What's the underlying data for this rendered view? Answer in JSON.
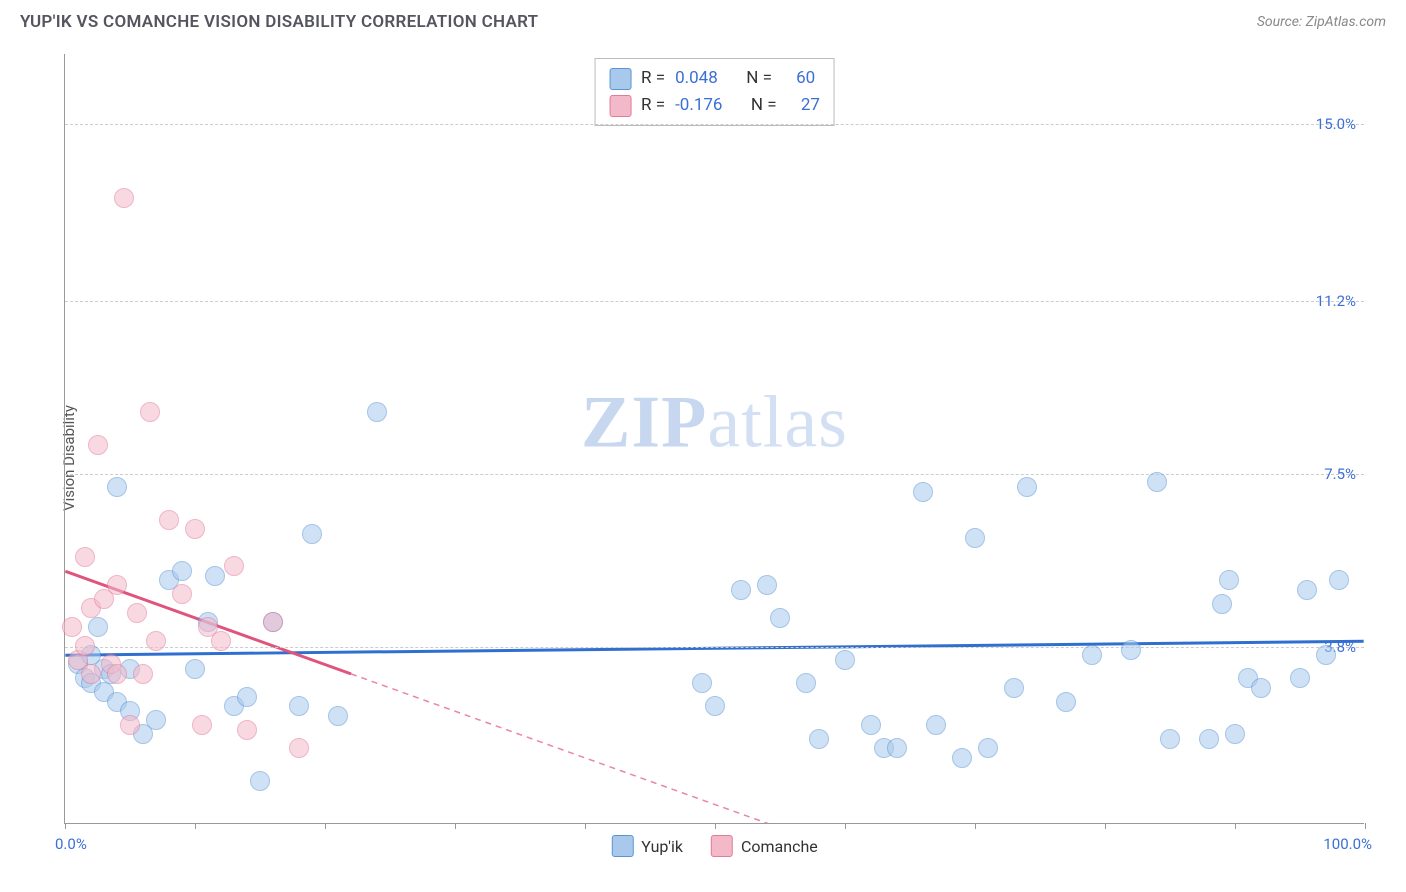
{
  "title": "YUP'IK VS COMANCHE VISION DISABILITY CORRELATION CHART",
  "source": "Source: ZipAtlas.com",
  "watermark_bold": "ZIP",
  "watermark_light": "atlas",
  "chart": {
    "type": "scatter",
    "ylabel": "Vision Disability",
    "xlim": [
      0,
      100
    ],
    "ylim": [
      0,
      16.5
    ],
    "x_ticks": [
      0,
      10,
      20,
      30,
      40,
      50,
      60,
      70,
      80,
      90,
      100
    ],
    "y_gridlines": [
      3.8,
      7.5,
      11.2,
      15.0
    ],
    "y_tick_labels": [
      "3.8%",
      "7.5%",
      "11.2%",
      "15.0%"
    ],
    "x_min_label": "0.0%",
    "x_max_label": "100.0%",
    "grid_color": "#cccccc",
    "axis_color": "#999999",
    "background_color": "#ffffff",
    "marker_radius": 10,
    "marker_opacity": 0.55,
    "series": [
      {
        "name": "Yup'ik",
        "fill": "#a9c9ec",
        "stroke": "#5b94d6",
        "trend_color": "#2f6fd0",
        "trend_width": 3,
        "R": "0.048",
        "N": "60",
        "trend": {
          "x0": 0,
          "y0": 3.6,
          "x1": 100,
          "y1": 3.9,
          "dash_from_x": null
        },
        "points": [
          [
            1,
            3.4
          ],
          [
            1.5,
            3.1
          ],
          [
            2,
            3.0
          ],
          [
            2,
            3.6
          ],
          [
            2.5,
            4.2
          ],
          [
            3,
            2.8
          ],
          [
            3,
            3.3
          ],
          [
            3.5,
            3.2
          ],
          [
            4,
            2.6
          ],
          [
            4,
            7.2
          ],
          [
            5,
            2.4
          ],
          [
            5,
            3.3
          ],
          [
            6,
            1.9
          ],
          [
            7,
            2.2
          ],
          [
            8,
            5.2
          ],
          [
            9,
            5.4
          ],
          [
            10,
            3.3
          ],
          [
            11,
            4.3
          ],
          [
            11.5,
            5.3
          ],
          [
            13,
            2.5
          ],
          [
            14,
            2.7
          ],
          [
            15,
            0.9
          ],
          [
            16,
            4.3
          ],
          [
            18,
            2.5
          ],
          [
            19,
            6.2
          ],
          [
            21,
            2.3
          ],
          [
            24,
            8.8
          ],
          [
            49,
            3.0
          ],
          [
            50,
            2.5
          ],
          [
            52,
            5.0
          ],
          [
            54,
            5.1
          ],
          [
            55,
            4.4
          ],
          [
            57,
            3.0
          ],
          [
            58,
            1.8
          ],
          [
            60,
            3.5
          ],
          [
            62,
            2.1
          ],
          [
            63,
            1.6
          ],
          [
            64,
            1.6
          ],
          [
            66,
            7.1
          ],
          [
            67,
            2.1
          ],
          [
            69,
            1.4
          ],
          [
            70,
            6.1
          ],
          [
            71,
            1.6
          ],
          [
            73,
            2.9
          ],
          [
            74,
            7.2
          ],
          [
            77,
            2.6
          ],
          [
            79,
            3.6
          ],
          [
            82,
            3.7
          ],
          [
            84,
            7.3
          ],
          [
            85,
            1.8
          ],
          [
            88,
            1.8
          ],
          [
            89,
            4.7
          ],
          [
            89.5,
            5.2
          ],
          [
            90,
            1.9
          ],
          [
            91,
            3.1
          ],
          [
            92,
            2.9
          ],
          [
            95,
            3.1
          ],
          [
            95.5,
            5.0
          ],
          [
            97,
            3.6
          ],
          [
            98,
            5.2
          ]
        ]
      },
      {
        "name": "Comanche",
        "fill": "#f3b9c9",
        "stroke": "#e27a9a",
        "trend_color": "#e0537c",
        "trend_width": 3,
        "R": "-0.176",
        "N": "27",
        "trend": {
          "x0": 0,
          "y0": 5.4,
          "x1": 60,
          "y1": -0.6,
          "dash_from_x": 22
        },
        "points": [
          [
            0.5,
            4.2
          ],
          [
            1,
            3.5
          ],
          [
            1.5,
            3.8
          ],
          [
            1.5,
            5.7
          ],
          [
            2,
            4.6
          ],
          [
            2,
            3.2
          ],
          [
            2.5,
            8.1
          ],
          [
            3,
            4.8
          ],
          [
            3.5,
            3.4
          ],
          [
            4,
            5.1
          ],
          [
            4,
            3.2
          ],
          [
            4.5,
            13.4
          ],
          [
            5,
            2.1
          ],
          [
            5.5,
            4.5
          ],
          [
            6,
            3.2
          ],
          [
            6.5,
            8.8
          ],
          [
            7,
            3.9
          ],
          [
            8,
            6.5
          ],
          [
            9,
            4.9
          ],
          [
            10,
            6.3
          ],
          [
            10.5,
            2.1
          ],
          [
            11,
            4.2
          ],
          [
            12,
            3.9
          ],
          [
            13,
            5.5
          ],
          [
            14,
            2.0
          ],
          [
            16,
            4.3
          ],
          [
            18,
            1.6
          ]
        ]
      }
    ],
    "stat_box": {
      "r_label": "R =",
      "n_label": "N ="
    },
    "bottom_legend": [
      "Yup'ik",
      "Comanche"
    ]
  }
}
